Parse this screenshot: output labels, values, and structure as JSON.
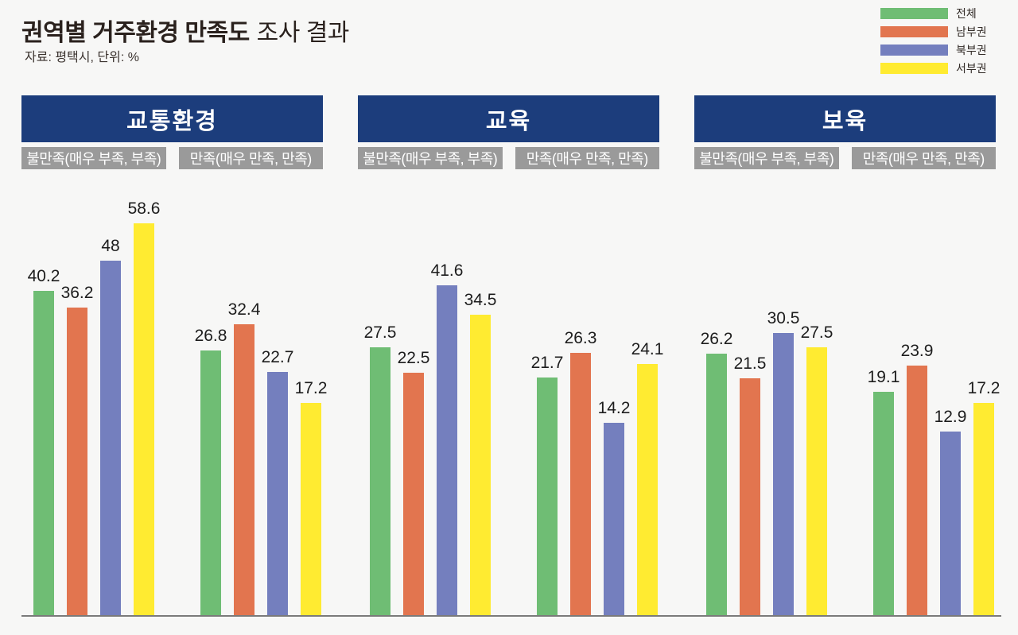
{
  "title": {
    "bold": "권역별 거주환경 만족도",
    "rest": "조사 결과"
  },
  "subtitle": "자료: 평택시, 단위: %",
  "legend": [
    {
      "label": "전체",
      "color": "#6fbd74"
    },
    {
      "label": "남부권",
      "color": "#e2754f"
    },
    {
      "label": "북부권",
      "color": "#747fbe"
    },
    {
      "label": "서부권",
      "color": "#ffeb31"
    }
  ],
  "colors": {
    "section_header_bg": "#1c3d7c",
    "group_label_bg": "#9a9a9a",
    "baseline": "#7b7b7b",
    "background": "#f7f7f6"
  },
  "chart_data": {
    "type": "bar",
    "title": "권역별 거주환경 만족도 조사 결과",
    "unit": "%",
    "source": "평택시",
    "series_names": [
      "전체",
      "남부권",
      "북부권",
      "서부권"
    ],
    "value_labels_shown": true,
    "legend_position": "top-right",
    "ylim": [
      0,
      60
    ],
    "sections": [
      {
        "title": "교통환경",
        "groups": [
          {
            "label": "불만족(매우 부족, 부족)",
            "values": [
              40.2,
              36.2,
              48,
              58.6
            ]
          },
          {
            "label": "만족(매우 만족, 만족)",
            "values": [
              26.8,
              32.4,
              22.7,
              17.2
            ]
          }
        ]
      },
      {
        "title": "교육",
        "groups": [
          {
            "label": "불만족(매우 부족, 부족)",
            "values": [
              27.5,
              22.5,
              41.6,
              34.5
            ]
          },
          {
            "label": "만족(매우 만족, 만족)",
            "values": [
              21.7,
              26.3,
              14.2,
              24.1
            ]
          }
        ]
      },
      {
        "title": "보육",
        "groups": [
          {
            "label": "불만족(매우 부족, 부족)",
            "values": [
              26.2,
              21.5,
              30.5,
              27.5
            ]
          },
          {
            "label": "만족(매우 만족, 만족)",
            "values": [
              19.1,
              23.9,
              12.9,
              17.2
            ]
          }
        ]
      }
    ]
  }
}
